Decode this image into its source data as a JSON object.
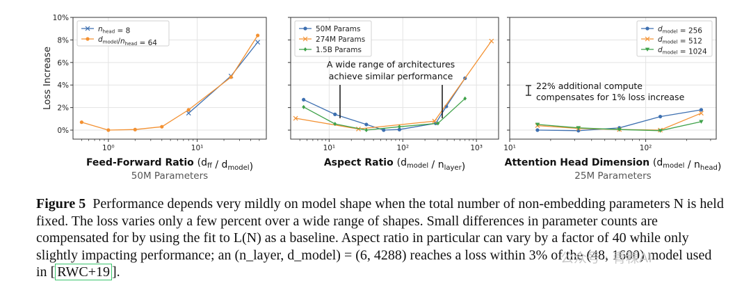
{
  "chart_data": [
    {
      "type": "line",
      "xscale": "log",
      "xlim": [
        0.4,
        60
      ],
      "ylim": [
        -0.8,
        10
      ],
      "yticks": [
        0,
        2,
        4,
        6,
        8,
        10
      ],
      "ytick_labels": [
        "0%",
        "2%",
        "4%",
        "6%",
        "8%",
        "10%"
      ],
      "xticks": [
        1,
        10
      ],
      "xtick_labels": [
        "10⁰",
        "10¹"
      ],
      "ylabel": "Loss Increase",
      "xlabel": "Feed-Forward Ratio (d_ff / d_model)",
      "subtitle": "50M Parameters",
      "legend_position": "top-left",
      "series": [
        {
          "name": "n_head = 8",
          "color": "#3d6fb0",
          "marker": "x",
          "x": [
            8,
            24,
            48
          ],
          "y": [
            1.5,
            4.8,
            7.8
          ]
        },
        {
          "name": "d_model/n_head = 64",
          "color": "#f39132",
          "marker": "o",
          "x": [
            0.5,
            1,
            2,
            4,
            8,
            24,
            48
          ],
          "y": [
            0.7,
            0.0,
            0.05,
            0.3,
            1.8,
            4.7,
            8.4
          ]
        }
      ]
    },
    {
      "type": "line",
      "xscale": "log",
      "xlim": [
        3,
        2000
      ],
      "ylim": [
        -0.8,
        10
      ],
      "yticks": [
        0,
        2,
        4,
        6,
        8,
        10
      ],
      "xticks": [
        10,
        100,
        1000
      ],
      "xtick_labels": [
        "10¹",
        "10²",
        "10³"
      ],
      "xlabel": "Aspect Ratio (d_model / n_layer)",
      "legend_position": "top-left",
      "annotation": "A wide range of architectures achieve similar performance",
      "series": [
        {
          "name": "50M Params",
          "color": "#3d6fb0",
          "marker": "o",
          "x": [
            4.5,
            12,
            32,
            55,
            90,
            280,
            390,
            700
          ],
          "y": [
            2.7,
            1.4,
            0.5,
            0.0,
            0.05,
            0.6,
            2.1,
            4.6
          ]
        },
        {
          "name": "274M Params",
          "color": "#f39132",
          "marker": "x",
          "x": [
            3.5,
            25,
            270,
            1600
          ],
          "y": [
            1.05,
            0.1,
            0.8,
            7.9
          ]
        },
        {
          "name": "1.5B Params",
          "color": "#3fa24a",
          "marker": "d",
          "x": [
            4.5,
            12,
            32,
            90,
            300,
            700
          ],
          "y": [
            2.05,
            0.55,
            0.0,
            0.3,
            0.6,
            2.8
          ]
        }
      ]
    },
    {
      "type": "line",
      "xscale": "log",
      "xlim": [
        10,
        330
      ],
      "ylim": [
        -0.8,
        10
      ],
      "yticks": [
        0,
        2,
        4,
        6,
        8,
        10
      ],
      "xticks": [
        10,
        100
      ],
      "xtick_labels": [
        "10¹",
        "10²"
      ],
      "xlabel": "Attention Head Dimension (d_model / n_head)",
      "subtitle": "25M Parameters",
      "legend_position": "top-right",
      "annotation": "22% additional compute compensates for 1% loss increase",
      "series": [
        {
          "name": "d_model = 256",
          "color": "#3d6fb0",
          "marker": "o",
          "x": [
            16,
            32,
            64,
            128,
            256
          ],
          "y": [
            0.0,
            -0.05,
            0.2,
            1.2,
            1.8
          ]
        },
        {
          "name": "d_model = 512",
          "color": "#f39132",
          "marker": "x",
          "x": [
            16,
            32,
            64,
            128,
            256
          ],
          "y": [
            0.4,
            0.15,
            0.05,
            0.0,
            1.5
          ]
        },
        {
          "name": "d_model = 1024",
          "color": "#3fa24a",
          "marker": "v",
          "x": [
            16,
            32,
            64,
            128,
            256
          ],
          "y": [
            0.5,
            0.2,
            0.05,
            -0.05,
            0.75
          ]
        }
      ]
    }
  ],
  "caption": {
    "figure_label": "Figure 5",
    "text": "Performance depends very mildly on model shape when the total number of non-embedding parameters N is held fixed. The loss varies only a few percent over a wide range of shapes. Small differences in parameter counts are compensated for by using the fit to L(N) as a baseline. Aspect ratio in particular can vary by a factor of 40 while only slightly impacting performance; an (n_layer, d_model) = (6, 4288) reaches a loss within 3% of the (48, 1600) model used in",
    "citation": "RWC+19",
    "end": "."
  },
  "watermark": "公众号 · 青稞AI"
}
